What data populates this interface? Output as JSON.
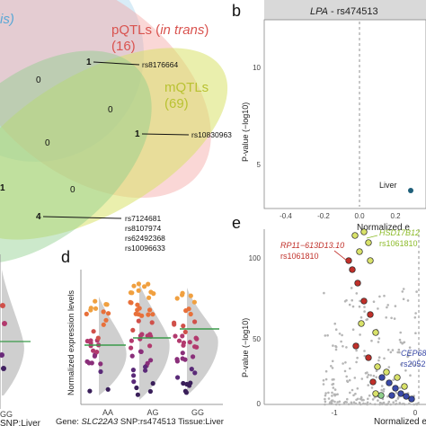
{
  "panels": {
    "a": {
      "left_label_partial": "is)",
      "pqtl_title": "pQTLs (",
      "pqtl_title_italic": "in trans",
      "pqtl_title_end": ")",
      "pqtl_count": "(16)",
      "mqtl_title": "mQTLs",
      "mqtl_count": "(69)",
      "counts": [
        "1",
        "0",
        "0",
        "1",
        "0",
        "1",
        "0",
        "4"
      ],
      "snp_labels": [
        "rs8176664",
        "rs10830963",
        "rs7124681",
        "rs8107974",
        "rs62492368",
        "rs10096633"
      ],
      "colors": {
        "blue": "#8ec9e8",
        "pink": "#f4a7a5",
        "yellow": "#d9e26a",
        "green": "#8fcf8b"
      }
    },
    "b": {
      "letter": "b",
      "strip_title_italic": "LPA",
      "strip_title_rest": " - rs474513",
      "ylabel": "P-value (−log10)",
      "xlabel_partial": "Normalized e",
      "yticks": [
        "10",
        "5"
      ],
      "xticks": [
        "-0.4",
        "-0.2",
        "0.0",
        "0.2"
      ],
      "point_label": "Liver"
    },
    "c_partial": {
      "xtick": "GG",
      "xlabel_partial": "SNP:Liver"
    },
    "d": {
      "letter": "d",
      "ylabel": "Normalized expression levels",
      "xticks": [
        "AA",
        "AG",
        "GG"
      ],
      "xlabel_prefix": "Gene: ",
      "xlabel_gene": "SLC22A3",
      "xlabel_rest": " SNP:rs474513 Tissue:Liver"
    },
    "e": {
      "letter": "e",
      "ylabel": "P-value (−log10)",
      "xlabel_partial": "Normalized e",
      "yticks": [
        "100",
        "50",
        "0"
      ],
      "xticks": [
        "-1",
        "0"
      ],
      "gene_red": "RP11−613D13.10",
      "snp_red": "rs1061810",
      "gene_green": "HSD17B12",
      "snp_green": "rs1061810",
      "gene_blue": "CEP68",
      "snp_blue": "rs2052"
    }
  }
}
